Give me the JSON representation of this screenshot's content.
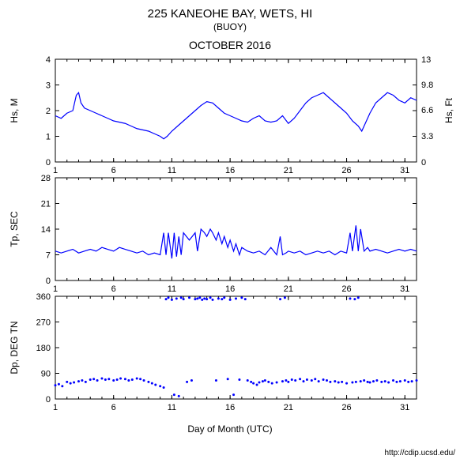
{
  "title": "225 KANEOHE BAY, WETS, HI",
  "subtitle": "(BUOY)",
  "period": "OCTOBER 2016",
  "footer_url": "http://cdip.ucsd.edu/",
  "xlabel": "Day of Month (UTC)",
  "bg_color": "#ffffff",
  "axis_color": "#000000",
  "series_color": "#0000ff",
  "title_fontsize": 15,
  "subtitle_fontsize": 12,
  "period_fontsize": 14,
  "label_fontsize": 12,
  "tick_fontsize": 11,
  "footer_fontsize": 10,
  "x_ticks": [
    1,
    6,
    11,
    16,
    21,
    26,
    31
  ],
  "x_domain": [
    1,
    32
  ],
  "panel1": {
    "ylabel_left": "Hs, M",
    "ylabel_right": "Hs, Ft",
    "ylim": [
      0,
      4
    ],
    "yticks": [
      0,
      1,
      2,
      3,
      4
    ],
    "ylim_r": [
      0,
      13
    ],
    "yticks_r": [
      0,
      3.3,
      6.6,
      9.8,
      13
    ],
    "data": [
      [
        1,
        1.8
      ],
      [
        1.5,
        1.7
      ],
      [
        2,
        1.9
      ],
      [
        2.5,
        2.0
      ],
      [
        2.8,
        2.6
      ],
      [
        3,
        2.7
      ],
      [
        3.2,
        2.3
      ],
      [
        3.5,
        2.1
      ],
      [
        4,
        2.0
      ],
      [
        4.5,
        1.9
      ],
      [
        5,
        1.8
      ],
      [
        5.5,
        1.7
      ],
      [
        6,
        1.6
      ],
      [
        6.5,
        1.55
      ],
      [
        7,
        1.5
      ],
      [
        7.5,
        1.4
      ],
      [
        8,
        1.3
      ],
      [
        8.5,
        1.25
      ],
      [
        9,
        1.2
      ],
      [
        9.5,
        1.1
      ],
      [
        10,
        1.0
      ],
      [
        10.3,
        0.9
      ],
      [
        10.6,
        1.0
      ],
      [
        11,
        1.2
      ],
      [
        11.5,
        1.4
      ],
      [
        12,
        1.6
      ],
      [
        12.5,
        1.8
      ],
      [
        13,
        2.0
      ],
      [
        13.5,
        2.2
      ],
      [
        14,
        2.35
      ],
      [
        14.5,
        2.3
      ],
      [
        15,
        2.1
      ],
      [
        15.5,
        1.9
      ],
      [
        16,
        1.8
      ],
      [
        16.5,
        1.7
      ],
      [
        17,
        1.6
      ],
      [
        17.5,
        1.55
      ],
      [
        18,
        1.7
      ],
      [
        18.5,
        1.8
      ],
      [
        19,
        1.6
      ],
      [
        19.5,
        1.55
      ],
      [
        20,
        1.6
      ],
      [
        20.5,
        1.8
      ],
      [
        21,
        1.5
      ],
      [
        21.5,
        1.7
      ],
      [
        22,
        2.0
      ],
      [
        22.5,
        2.3
      ],
      [
        23,
        2.5
      ],
      [
        23.5,
        2.6
      ],
      [
        24,
        2.7
      ],
      [
        24.5,
        2.5
      ],
      [
        25,
        2.3
      ],
      [
        25.5,
        2.1
      ],
      [
        26,
        1.9
      ],
      [
        26.5,
        1.6
      ],
      [
        27,
        1.4
      ],
      [
        27.3,
        1.2
      ],
      [
        27.6,
        1.5
      ],
      [
        28,
        1.9
      ],
      [
        28.5,
        2.3
      ],
      [
        29,
        2.5
      ],
      [
        29.5,
        2.7
      ],
      [
        30,
        2.6
      ],
      [
        30.5,
        2.4
      ],
      [
        31,
        2.3
      ],
      [
        31.5,
        2.5
      ],
      [
        32,
        2.4
      ]
    ]
  },
  "panel2": {
    "ylabel": "Tp, SEC",
    "ylim": [
      0,
      28
    ],
    "yticks": [
      0,
      7,
      14,
      21,
      28
    ],
    "data": [
      [
        1,
        8
      ],
      [
        1.5,
        7.5
      ],
      [
        2,
        8
      ],
      [
        2.5,
        8.5
      ],
      [
        3,
        7.5
      ],
      [
        3.5,
        8
      ],
      [
        4,
        8.5
      ],
      [
        4.5,
        8
      ],
      [
        5,
        9
      ],
      [
        5.5,
        8.5
      ],
      [
        6,
        8
      ],
      [
        6.5,
        9
      ],
      [
        7,
        8.5
      ],
      [
        7.5,
        8
      ],
      [
        8,
        7.5
      ],
      [
        8.5,
        8
      ],
      [
        9,
        7
      ],
      [
        9.5,
        7.5
      ],
      [
        10,
        7
      ],
      [
        10.3,
        13
      ],
      [
        10.5,
        7
      ],
      [
        10.7,
        13
      ],
      [
        11,
        6
      ],
      [
        11.2,
        13
      ],
      [
        11.4,
        6.5
      ],
      [
        11.6,
        12
      ],
      [
        11.8,
        7
      ],
      [
        12,
        13
      ],
      [
        12.5,
        11
      ],
      [
        13,
        13
      ],
      [
        13.2,
        8
      ],
      [
        13.5,
        14
      ],
      [
        13.8,
        13
      ],
      [
        14,
        12
      ],
      [
        14.3,
        14
      ],
      [
        14.5,
        13
      ],
      [
        14.8,
        11
      ],
      [
        15,
        13
      ],
      [
        15.3,
        10
      ],
      [
        15.5,
        12
      ],
      [
        15.8,
        9
      ],
      [
        16,
        11
      ],
      [
        16.3,
        8
      ],
      [
        16.5,
        10
      ],
      [
        16.8,
        7
      ],
      [
        17,
        9
      ],
      [
        17.5,
        8
      ],
      [
        18,
        7.5
      ],
      [
        18.5,
        8
      ],
      [
        19,
        7
      ],
      [
        19.5,
        9
      ],
      [
        20,
        7
      ],
      [
        20.3,
        12
      ],
      [
        20.5,
        7
      ],
      [
        20.8,
        7.5
      ],
      [
        21,
        8
      ],
      [
        21.5,
        7.5
      ],
      [
        22,
        8
      ],
      [
        22.5,
        7
      ],
      [
        23,
        7.5
      ],
      [
        23.5,
        8
      ],
      [
        24,
        7.5
      ],
      [
        24.5,
        8
      ],
      [
        25,
        7
      ],
      [
        25.5,
        8
      ],
      [
        26,
        7.5
      ],
      [
        26.3,
        13
      ],
      [
        26.5,
        8
      ],
      [
        26.8,
        15
      ],
      [
        27,
        8
      ],
      [
        27.2,
        14
      ],
      [
        27.5,
        8
      ],
      [
        27.8,
        9
      ],
      [
        28,
        8
      ],
      [
        28.5,
        8.5
      ],
      [
        29,
        8
      ],
      [
        29.5,
        7.5
      ],
      [
        30,
        8
      ],
      [
        30.5,
        8.5
      ],
      [
        31,
        8
      ],
      [
        31.5,
        8.5
      ],
      [
        32,
        8
      ]
    ]
  },
  "panel3": {
    "ylabel": "Dp, DEG TN",
    "ylim": [
      0,
      360
    ],
    "yticks": [
      0,
      90,
      180,
      270,
      360
    ],
    "data": [
      [
        1,
        48
      ],
      [
        1.3,
        52
      ],
      [
        1.6,
        45
      ],
      [
        2,
        60
      ],
      [
        2.3,
        55
      ],
      [
        2.6,
        58
      ],
      [
        3,
        62
      ],
      [
        3.3,
        65
      ],
      [
        3.6,
        60
      ],
      [
        4,
        68
      ],
      [
        4.3,
        70
      ],
      [
        4.6,
        65
      ],
      [
        5,
        72
      ],
      [
        5.3,
        68
      ],
      [
        5.6,
        70
      ],
      [
        6,
        65
      ],
      [
        6.3,
        68
      ],
      [
        6.6,
        72
      ],
      [
        7,
        70
      ],
      [
        7.3,
        65
      ],
      [
        7.6,
        68
      ],
      [
        8,
        72
      ],
      [
        8.3,
        70
      ],
      [
        8.6,
        65
      ],
      [
        9,
        60
      ],
      [
        9.3,
        55
      ],
      [
        9.6,
        50
      ],
      [
        10,
        45
      ],
      [
        10.3,
        40
      ],
      [
        10.5,
        350
      ],
      [
        10.7,
        355
      ],
      [
        11,
        348
      ],
      [
        11.2,
        15
      ],
      [
        11.4,
        352
      ],
      [
        11.6,
        10
      ],
      [
        11.8,
        355
      ],
      [
        12,
        350
      ],
      [
        12.3,
        60
      ],
      [
        12.5,
        355
      ],
      [
        12.7,
        65
      ],
      [
        13,
        350
      ],
      [
        13.2,
        352
      ],
      [
        13.4,
        355
      ],
      [
        13.6,
        348
      ],
      [
        13.8,
        352
      ],
      [
        14,
        350
      ],
      [
        14.3,
        355
      ],
      [
        14.5,
        348
      ],
      [
        14.8,
        65
      ],
      [
        15,
        352
      ],
      [
        15.3,
        350
      ],
      [
        15.5,
        355
      ],
      [
        15.8,
        70
      ],
      [
        16,
        348
      ],
      [
        16.3,
        15
      ],
      [
        16.5,
        352
      ],
      [
        16.8,
        68
      ],
      [
        17,
        355
      ],
      [
        17.3,
        350
      ],
      [
        17.5,
        65
      ],
      [
        17.8,
        60
      ],
      [
        18,
        55
      ],
      [
        18.3,
        50
      ],
      [
        18.5,
        58
      ],
      [
        18.8,
        62
      ],
      [
        19,
        65
      ],
      [
        19.3,
        60
      ],
      [
        19.6,
        55
      ],
      [
        20,
        58
      ],
      [
        20.3,
        350
      ],
      [
        20.5,
        62
      ],
      [
        20.7,
        355
      ],
      [
        20.8,
        65
      ],
      [
        21,
        60
      ],
      [
        21.3,
        68
      ],
      [
        21.6,
        65
      ],
      [
        22,
        70
      ],
      [
        22.3,
        62
      ],
      [
        22.6,
        68
      ],
      [
        23,
        65
      ],
      [
        23.3,
        70
      ],
      [
        23.6,
        62
      ],
      [
        24,
        68
      ],
      [
        24.3,
        65
      ],
      [
        24.6,
        60
      ],
      [
        25,
        62
      ],
      [
        25.3,
        58
      ],
      [
        25.6,
        60
      ],
      [
        26,
        55
      ],
      [
        26.3,
        352
      ],
      [
        26.5,
        58
      ],
      [
        26.7,
        350
      ],
      [
        26.8,
        60
      ],
      [
        27,
        355
      ],
      [
        27.2,
        62
      ],
      [
        27.5,
        65
      ],
      [
        27.8,
        60
      ],
      [
        28,
        58
      ],
      [
        28.3,
        62
      ],
      [
        28.6,
        65
      ],
      [
        29,
        60
      ],
      [
        29.3,
        62
      ],
      [
        29.6,
        58
      ],
      [
        30,
        65
      ],
      [
        30.3,
        60
      ],
      [
        30.6,
        62
      ],
      [
        31,
        65
      ],
      [
        31.3,
        60
      ],
      [
        31.6,
        62
      ],
      [
        32,
        65
      ]
    ]
  }
}
